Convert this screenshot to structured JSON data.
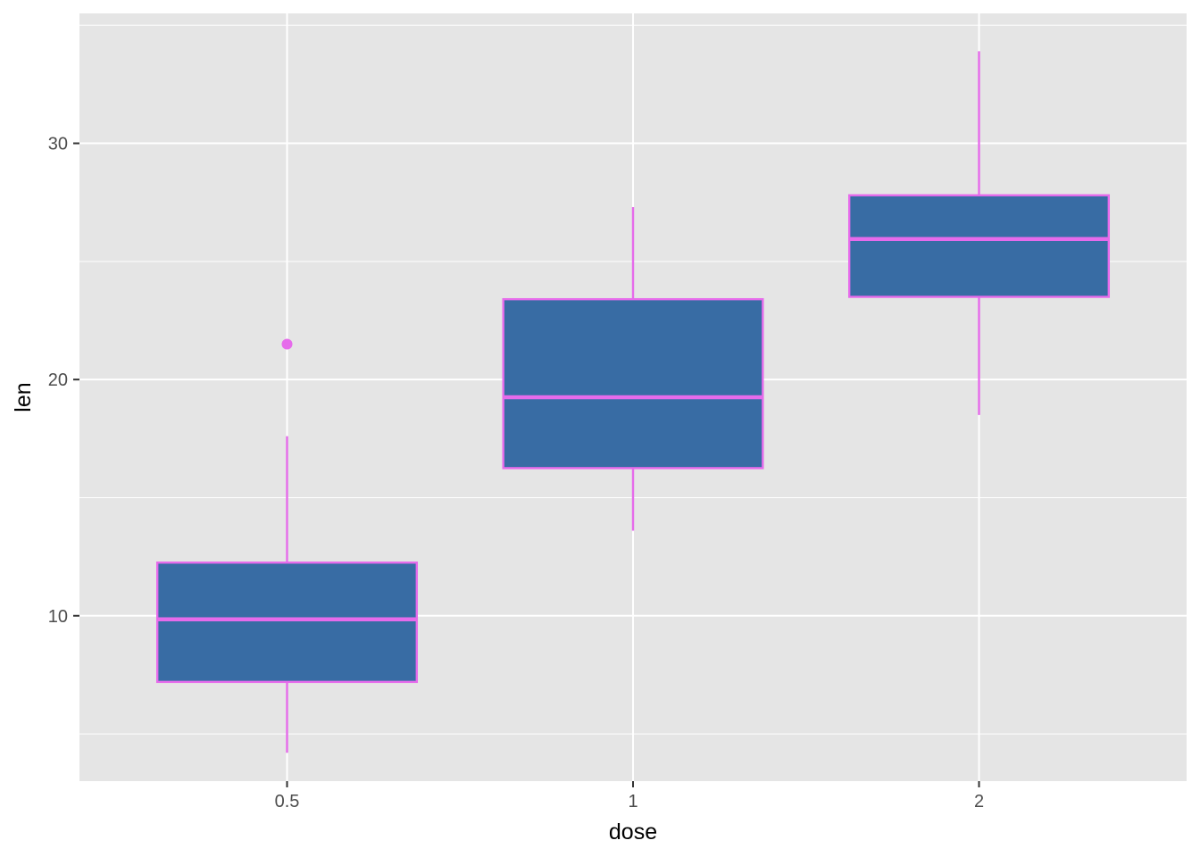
{
  "chart_data": {
    "type": "boxplot",
    "title": "",
    "xlabel": "dose",
    "ylabel": "len",
    "categories": [
      "0.5",
      "1",
      "2"
    ],
    "ylim": [
      3.0,
      35.5
    ],
    "y_ticks": [
      10,
      20,
      30
    ],
    "y_tick_labels": [
      "10",
      "20",
      "30"
    ],
    "grid": true,
    "legend": "none",
    "boxes": [
      {
        "category": "0.5",
        "whisker_low": 4.2,
        "q1": 7.2,
        "median": 9.85,
        "q3": 12.25,
        "whisker_high": 17.6,
        "outliers": [
          21.5
        ]
      },
      {
        "category": "1",
        "whisker_low": 13.6,
        "q1": 16.25,
        "median": 19.25,
        "q3": 23.4,
        "whisker_high": 27.3,
        "outliers": []
      },
      {
        "category": "2",
        "whisker_low": 18.5,
        "q1": 23.5,
        "median": 25.95,
        "q3": 27.8,
        "whisker_high": 33.9,
        "outliers": []
      }
    ],
    "colors": {
      "fill": "#386CA4",
      "outline": "#E66BEB",
      "panel_background": "#E5E5E5",
      "grid": "#FFFFFF"
    }
  }
}
